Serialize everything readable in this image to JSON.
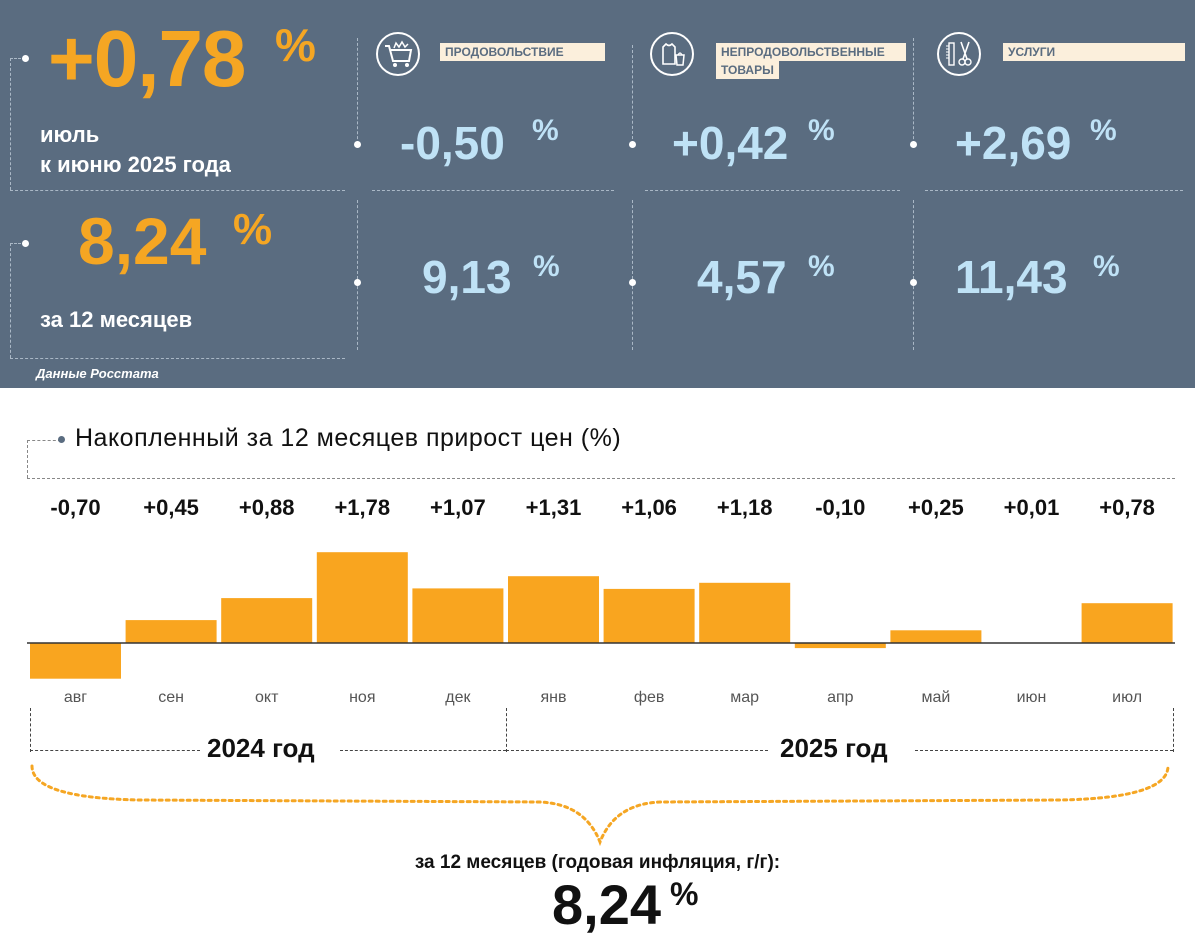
{
  "top": {
    "mom_value": "+0,78",
    "mom_unit": "%",
    "mom_label_line1": "июль",
    "mom_label_line2": "к июню 2025 года",
    "yoy_value": "8,24",
    "yoy_unit": "%",
    "yoy_label": "за 12 месяцев",
    "source": "Данные Росстата",
    "categories": [
      {
        "icon": "shopping-cart-icon",
        "label": "ПРОДОВОЛЬСТВИЕ",
        "mom": "-0,50",
        "yoy": "9,13"
      },
      {
        "icon": "clothing-icon",
        "label_line1": "НЕПРОДОВОЛЬСТВЕННЫЕ",
        "label_line2": "ТОВАРЫ",
        "mom": "+0,42",
        "yoy": "4,57"
      },
      {
        "icon": "scissors-comb-icon",
        "label": "УСЛУГИ",
        "mom": "+2,69",
        "yoy": "11,43"
      }
    ],
    "unit": "%"
  },
  "chart_data": {
    "type": "bar",
    "title": "Накопленный за 12 месяцев прирост цен (%)",
    "categories": [
      "авг",
      "сен",
      "окт",
      "ноя",
      "дек",
      "янв",
      "фев",
      "мар",
      "апр",
      "май",
      "июн",
      "июл"
    ],
    "values": [
      -0.7,
      0.45,
      0.88,
      1.78,
      1.07,
      1.31,
      1.06,
      1.18,
      -0.1,
      0.25,
      0.01,
      0.78
    ],
    "value_labels": [
      "-0,70",
      "+0,45",
      "+0,88",
      "+1,78",
      "+1,07",
      "+1,31",
      "+1,06",
      "+1,18",
      "-0,10",
      "+0,25",
      "+0,01",
      "+0,78"
    ],
    "year_groups": [
      {
        "label": "2024 год"
      },
      {
        "label": "2025 год"
      }
    ],
    "bar_color": "#f9a51f"
  },
  "summary": {
    "label": "за 12 месяцев (годовая инфляция, г/г):",
    "value": "8,24",
    "unit": "%"
  }
}
